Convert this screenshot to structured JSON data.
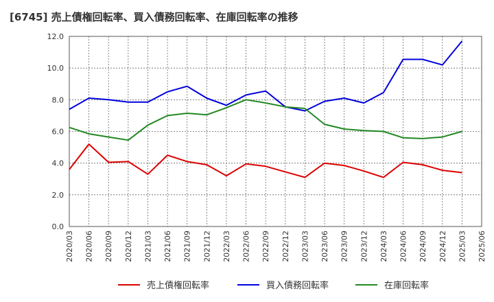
{
  "chart_data": {
    "type": "line",
    "title": "[6745]  売上債権回転率、買入債務回転率、在庫回転率の推移",
    "xlabel": "",
    "ylabel": "",
    "ylim": [
      0,
      12
    ],
    "yticks": [
      "0.0",
      "2.0",
      "4.0",
      "6.0",
      "8.0",
      "10.0",
      "12.0"
    ],
    "categories": [
      "2020/03",
      "2020/06",
      "2020/09",
      "2020/12",
      "2021/03",
      "2021/06",
      "2021/09",
      "2021/12",
      "2022/03",
      "2022/06",
      "2022/09",
      "2022/12",
      "2023/03",
      "2023/06",
      "2023/09",
      "2023/12",
      "2024/03",
      "2024/06",
      "2024/09",
      "2024/12",
      "2025/03",
      "2025/06"
    ],
    "grid": true,
    "legend_position": "bottom",
    "series": [
      {
        "name": "売上債権回転率",
        "color": "#dd0000",
        "values": [
          3.6,
          5.2,
          4.05,
          4.1,
          3.3,
          4.5,
          4.1,
          3.9,
          3.2,
          3.95,
          3.8,
          3.45,
          3.1,
          4.0,
          3.85,
          3.5,
          3.1,
          4.05,
          3.9,
          3.55,
          3.4,
          null
        ]
      },
      {
        "name": "買入債務回転率",
        "color": "#0000dd",
        "values": [
          7.4,
          8.1,
          8.0,
          7.85,
          7.85,
          8.5,
          8.85,
          8.1,
          7.65,
          8.3,
          8.55,
          7.55,
          7.3,
          7.9,
          8.1,
          7.8,
          8.45,
          10.55,
          10.55,
          10.2,
          11.7,
          null
        ]
      },
      {
        "name": "在庫回転率",
        "color": "#228822",
        "values": [
          6.25,
          5.85,
          5.65,
          5.45,
          6.4,
          7.0,
          7.15,
          7.05,
          7.5,
          8.0,
          7.8,
          7.55,
          7.45,
          6.45,
          6.15,
          6.05,
          6.0,
          5.6,
          5.55,
          5.65,
          6.0,
          null
        ]
      }
    ]
  }
}
